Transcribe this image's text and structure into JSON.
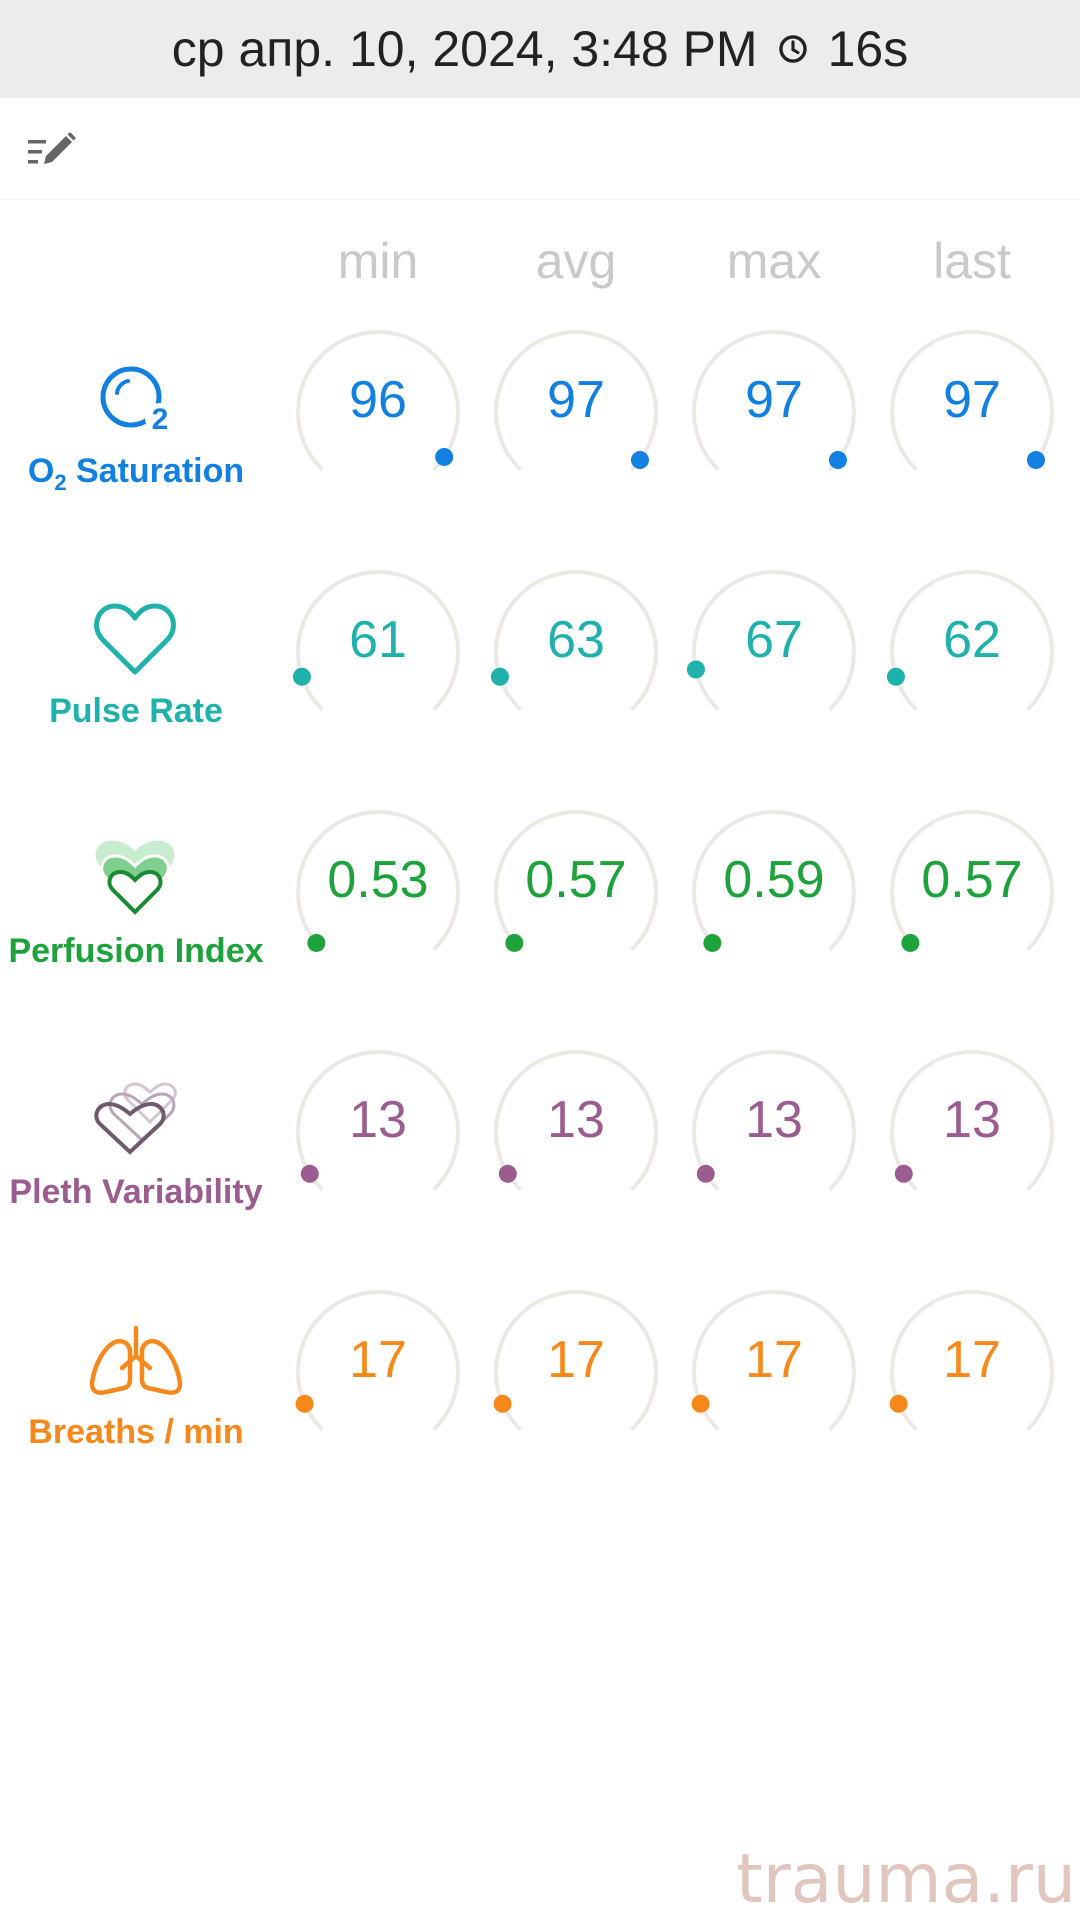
{
  "status": {
    "datetime": "ср апр. 10, 2024, 3:48 PM",
    "duration": "16s"
  },
  "toolbar": {
    "edit_icon": "edit-list-icon"
  },
  "columns": [
    "min",
    "avg",
    "max",
    "last"
  ],
  "colors": {
    "spo2": "#1180e0",
    "pulse": "#1fb2ad",
    "pi": "#1ea33c",
    "pvi": "#9b5c8f",
    "rr": "#f7891c",
    "track": "#ece9e4"
  },
  "metrics": [
    {
      "key": "spo2",
      "label_main": "O",
      "label_sub": "2",
      "label_rest": " Saturation",
      "icon": "o2-bubble-icon",
      "values": [
        "96",
        "97",
        "97",
        "97"
      ],
      "levels": [
        0.96,
        0.97,
        0.97,
        0.97
      ]
    },
    {
      "key": "pulse",
      "label": "Pulse Rate",
      "icon": "heart-outline-icon",
      "values": [
        "61",
        "63",
        "67",
        "62"
      ],
      "levels": [
        0.1,
        0.1,
        0.12,
        0.1
      ]
    },
    {
      "key": "pi",
      "label": "Perfusion Index",
      "icon": "layered-hearts-icon",
      "values": [
        "0.53",
        "0.57",
        "0.59",
        "0.57"
      ],
      "levels": [
        0.02,
        0.02,
        0.02,
        0.02
      ]
    },
    {
      "key": "pvi",
      "label": "Pleth Variability",
      "icon": "pleth-hearts-icon",
      "values": [
        "13",
        "13",
        "13",
        "13"
      ],
      "levels": [
        0.05,
        0.05,
        0.05,
        0.05
      ]
    },
    {
      "key": "rr",
      "label": "Breaths / min",
      "icon": "lungs-icon",
      "values": [
        "17",
        "17",
        "17",
        "17"
      ],
      "levels": [
        0.08,
        0.08,
        0.08,
        0.08
      ]
    }
  ],
  "watermark": "trauma.ru"
}
